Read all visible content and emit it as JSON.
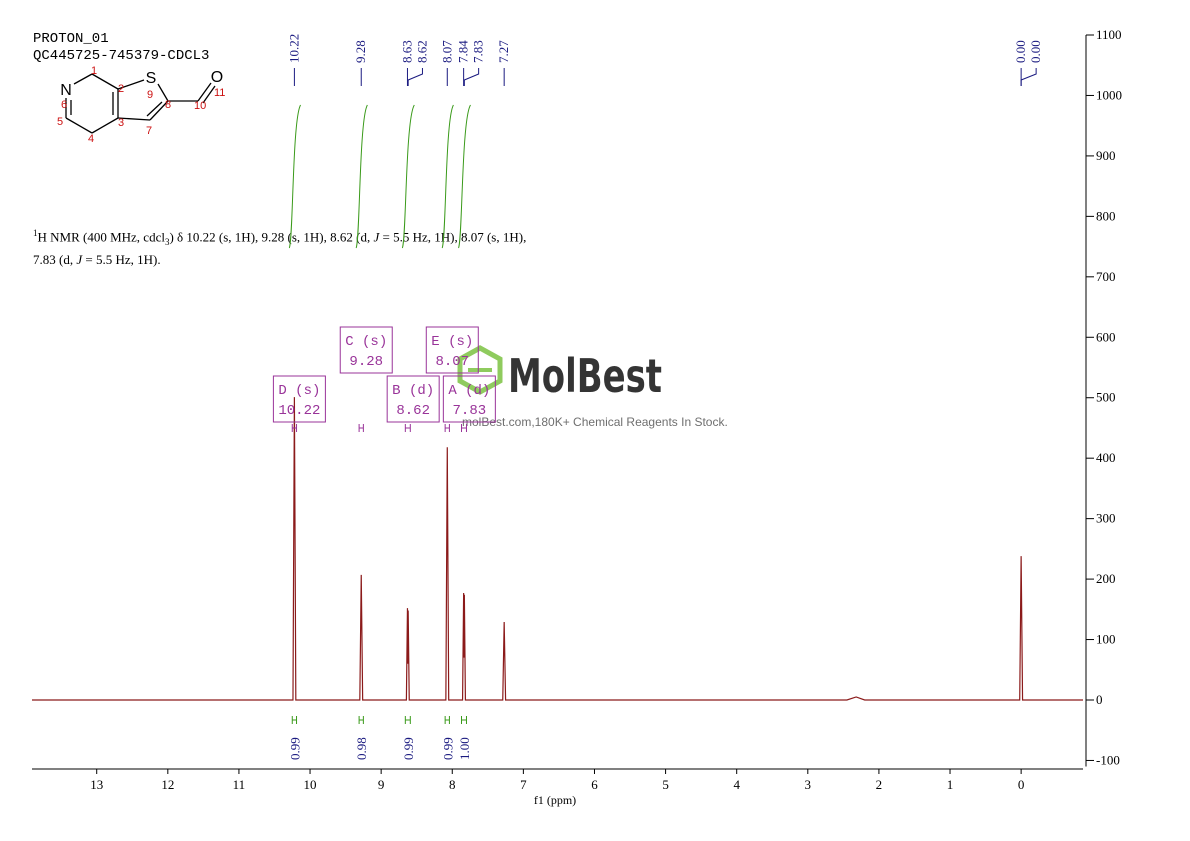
{
  "header": {
    "lines": [
      "PROTON_01",
      "QC445725-745379-CDCL3"
    ]
  },
  "structure": {
    "atoms": [
      "N",
      "S",
      "O"
    ],
    "numbers": [
      "1",
      "2",
      "3",
      "4",
      "5",
      "6",
      "7",
      "8",
      "9",
      "10",
      "11"
    ]
  },
  "description": {
    "line1": [
      "1",
      "H NMR (400 MHz, cdcl",
      "3",
      ") δ 10.22 (s, 1H), 9.28 (s, 1H), 8.62 (d, ",
      "J",
      " = 5.5 Hz, 1H), 8.07 (s, 1H),"
    ],
    "line2": [
      "7.83 (d, ",
      "J",
      " = 5.5 Hz, 1H)."
    ]
  },
  "watermark": {
    "brand": "MolBest",
    "tagline": "molBest.com,180K+ Chemical Reagents In Stock."
  },
  "chart_data": {
    "type": "line",
    "x_label": "f1 (ppm)",
    "xlim": [
      13.91,
      -0.87
    ],
    "ylim": [
      -110,
      1100
    ],
    "xticks": [
      13,
      12,
      11,
      10,
      9,
      8,
      7,
      6,
      5,
      4,
      3,
      2,
      1,
      0
    ],
    "yticks": [
      -100,
      0,
      100,
      200,
      300,
      400,
      500,
      600,
      700,
      800,
      900,
      1000,
      1100
    ],
    "color": "#8b1a1a",
    "x": [
      13.91,
      10.24,
      10.22,
      10.2,
      9.3,
      9.28,
      9.26,
      8.645,
      8.63,
      8.625,
      8.62,
      8.605,
      8.09,
      8.07,
      8.05,
      7.855,
      7.84,
      7.835,
      7.83,
      7.815,
      7.29,
      7.27,
      7.25,
      2.45,
      2.32,
      2.2,
      0.02,
      0,
      -0.02,
      -0.87
    ],
    "values": [
      0,
      0,
      501,
      0,
      0,
      207,
      0,
      0,
      152,
      60,
      148,
      0,
      0,
      418,
      0,
      0,
      177,
      70,
      174,
      0,
      0,
      129,
      0,
      0,
      5,
      0,
      0,
      238,
      0,
      0
    ],
    "peak_labels": [
      10.22,
      9.28,
      8.63,
      8.62,
      8.07,
      7.84,
      7.83,
      7.27,
      {
        "value": 0,
        "label": "0.00"
      },
      {
        "value": 0,
        "label": "0.00"
      }
    ],
    "multiplets": [
      {
        "name": "D (s)",
        "shift": 10.22,
        "range": [
          10.25,
          10.19
        ]
      },
      {
        "name": "C (s)",
        "shift": 9.28,
        "range": [
          9.31,
          9.25
        ]
      },
      {
        "name": "B (d)",
        "shift": 8.62,
        "range": [
          8.66,
          8.59
        ]
      },
      {
        "name": "E (s)",
        "shift": 8.07,
        "range": [
          8.1,
          8.04
        ]
      },
      {
        "name": "A (d)",
        "shift": 7.83,
        "range": [
          7.87,
          7.8
        ]
      }
    ],
    "integrals": [
      {
        "range": [
          10.25,
          10.19
        ],
        "value": 0.99
      },
      {
        "range": [
          9.31,
          9.25
        ],
        "value": 0.98
      },
      {
        "range": [
          8.66,
          8.59
        ],
        "value": 0.99
      },
      {
        "range": [
          8.1,
          8.04
        ],
        "value": 0.99
      },
      {
        "range": [
          7.87,
          7.8
        ],
        "value": 1,
        "label": "1.00"
      }
    ]
  }
}
